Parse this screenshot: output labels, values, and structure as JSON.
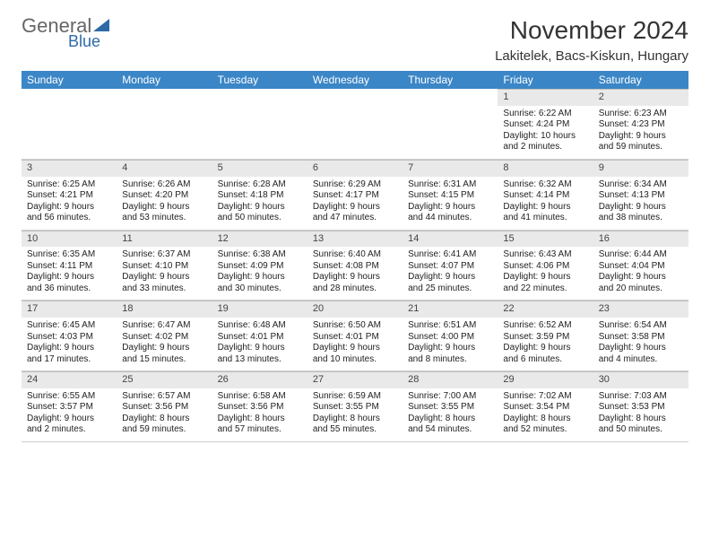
{
  "logo": {
    "word1": "General",
    "word2": "Blue"
  },
  "title": "November 2024",
  "location": "Lakitelek, Bacs-Kiskun, Hungary",
  "colors": {
    "header_bg": "#3b86c6",
    "header_text": "#ffffff",
    "daynum_bg": "#e9e9e9",
    "border": "#cfcfcf",
    "logo_blue": "#2f6aa8"
  },
  "weekdays": [
    "Sunday",
    "Monday",
    "Tuesday",
    "Wednesday",
    "Thursday",
    "Friday",
    "Saturday"
  ],
  "weeks": [
    [
      {
        "empty": true
      },
      {
        "empty": true
      },
      {
        "empty": true
      },
      {
        "empty": true
      },
      {
        "empty": true
      },
      {
        "num": "1",
        "sunrise": "Sunrise: 6:22 AM",
        "sunset": "Sunset: 4:24 PM",
        "daylight1": "Daylight: 10 hours",
        "daylight2": "and 2 minutes."
      },
      {
        "num": "2",
        "sunrise": "Sunrise: 6:23 AM",
        "sunset": "Sunset: 4:23 PM",
        "daylight1": "Daylight: 9 hours",
        "daylight2": "and 59 minutes."
      }
    ],
    [
      {
        "num": "3",
        "sunrise": "Sunrise: 6:25 AM",
        "sunset": "Sunset: 4:21 PM",
        "daylight1": "Daylight: 9 hours",
        "daylight2": "and 56 minutes."
      },
      {
        "num": "4",
        "sunrise": "Sunrise: 6:26 AM",
        "sunset": "Sunset: 4:20 PM",
        "daylight1": "Daylight: 9 hours",
        "daylight2": "and 53 minutes."
      },
      {
        "num": "5",
        "sunrise": "Sunrise: 6:28 AM",
        "sunset": "Sunset: 4:18 PM",
        "daylight1": "Daylight: 9 hours",
        "daylight2": "and 50 minutes."
      },
      {
        "num": "6",
        "sunrise": "Sunrise: 6:29 AM",
        "sunset": "Sunset: 4:17 PM",
        "daylight1": "Daylight: 9 hours",
        "daylight2": "and 47 minutes."
      },
      {
        "num": "7",
        "sunrise": "Sunrise: 6:31 AM",
        "sunset": "Sunset: 4:15 PM",
        "daylight1": "Daylight: 9 hours",
        "daylight2": "and 44 minutes."
      },
      {
        "num": "8",
        "sunrise": "Sunrise: 6:32 AM",
        "sunset": "Sunset: 4:14 PM",
        "daylight1": "Daylight: 9 hours",
        "daylight2": "and 41 minutes."
      },
      {
        "num": "9",
        "sunrise": "Sunrise: 6:34 AM",
        "sunset": "Sunset: 4:13 PM",
        "daylight1": "Daylight: 9 hours",
        "daylight2": "and 38 minutes."
      }
    ],
    [
      {
        "num": "10",
        "sunrise": "Sunrise: 6:35 AM",
        "sunset": "Sunset: 4:11 PM",
        "daylight1": "Daylight: 9 hours",
        "daylight2": "and 36 minutes."
      },
      {
        "num": "11",
        "sunrise": "Sunrise: 6:37 AM",
        "sunset": "Sunset: 4:10 PM",
        "daylight1": "Daylight: 9 hours",
        "daylight2": "and 33 minutes."
      },
      {
        "num": "12",
        "sunrise": "Sunrise: 6:38 AM",
        "sunset": "Sunset: 4:09 PM",
        "daylight1": "Daylight: 9 hours",
        "daylight2": "and 30 minutes."
      },
      {
        "num": "13",
        "sunrise": "Sunrise: 6:40 AM",
        "sunset": "Sunset: 4:08 PM",
        "daylight1": "Daylight: 9 hours",
        "daylight2": "and 28 minutes."
      },
      {
        "num": "14",
        "sunrise": "Sunrise: 6:41 AM",
        "sunset": "Sunset: 4:07 PM",
        "daylight1": "Daylight: 9 hours",
        "daylight2": "and 25 minutes."
      },
      {
        "num": "15",
        "sunrise": "Sunrise: 6:43 AM",
        "sunset": "Sunset: 4:06 PM",
        "daylight1": "Daylight: 9 hours",
        "daylight2": "and 22 minutes."
      },
      {
        "num": "16",
        "sunrise": "Sunrise: 6:44 AM",
        "sunset": "Sunset: 4:04 PM",
        "daylight1": "Daylight: 9 hours",
        "daylight2": "and 20 minutes."
      }
    ],
    [
      {
        "num": "17",
        "sunrise": "Sunrise: 6:45 AM",
        "sunset": "Sunset: 4:03 PM",
        "daylight1": "Daylight: 9 hours",
        "daylight2": "and 17 minutes."
      },
      {
        "num": "18",
        "sunrise": "Sunrise: 6:47 AM",
        "sunset": "Sunset: 4:02 PM",
        "daylight1": "Daylight: 9 hours",
        "daylight2": "and 15 minutes."
      },
      {
        "num": "19",
        "sunrise": "Sunrise: 6:48 AM",
        "sunset": "Sunset: 4:01 PM",
        "daylight1": "Daylight: 9 hours",
        "daylight2": "and 13 minutes."
      },
      {
        "num": "20",
        "sunrise": "Sunrise: 6:50 AM",
        "sunset": "Sunset: 4:01 PM",
        "daylight1": "Daylight: 9 hours",
        "daylight2": "and 10 minutes."
      },
      {
        "num": "21",
        "sunrise": "Sunrise: 6:51 AM",
        "sunset": "Sunset: 4:00 PM",
        "daylight1": "Daylight: 9 hours",
        "daylight2": "and 8 minutes."
      },
      {
        "num": "22",
        "sunrise": "Sunrise: 6:52 AM",
        "sunset": "Sunset: 3:59 PM",
        "daylight1": "Daylight: 9 hours",
        "daylight2": "and 6 minutes."
      },
      {
        "num": "23",
        "sunrise": "Sunrise: 6:54 AM",
        "sunset": "Sunset: 3:58 PM",
        "daylight1": "Daylight: 9 hours",
        "daylight2": "and 4 minutes."
      }
    ],
    [
      {
        "num": "24",
        "sunrise": "Sunrise: 6:55 AM",
        "sunset": "Sunset: 3:57 PM",
        "daylight1": "Daylight: 9 hours",
        "daylight2": "and 2 minutes."
      },
      {
        "num": "25",
        "sunrise": "Sunrise: 6:57 AM",
        "sunset": "Sunset: 3:56 PM",
        "daylight1": "Daylight: 8 hours",
        "daylight2": "and 59 minutes."
      },
      {
        "num": "26",
        "sunrise": "Sunrise: 6:58 AM",
        "sunset": "Sunset: 3:56 PM",
        "daylight1": "Daylight: 8 hours",
        "daylight2": "and 57 minutes."
      },
      {
        "num": "27",
        "sunrise": "Sunrise: 6:59 AM",
        "sunset": "Sunset: 3:55 PM",
        "daylight1": "Daylight: 8 hours",
        "daylight2": "and 55 minutes."
      },
      {
        "num": "28",
        "sunrise": "Sunrise: 7:00 AM",
        "sunset": "Sunset: 3:55 PM",
        "daylight1": "Daylight: 8 hours",
        "daylight2": "and 54 minutes."
      },
      {
        "num": "29",
        "sunrise": "Sunrise: 7:02 AM",
        "sunset": "Sunset: 3:54 PM",
        "daylight1": "Daylight: 8 hours",
        "daylight2": "and 52 minutes."
      },
      {
        "num": "30",
        "sunrise": "Sunrise: 7:03 AM",
        "sunset": "Sunset: 3:53 PM",
        "daylight1": "Daylight: 8 hours",
        "daylight2": "and 50 minutes."
      }
    ]
  ]
}
